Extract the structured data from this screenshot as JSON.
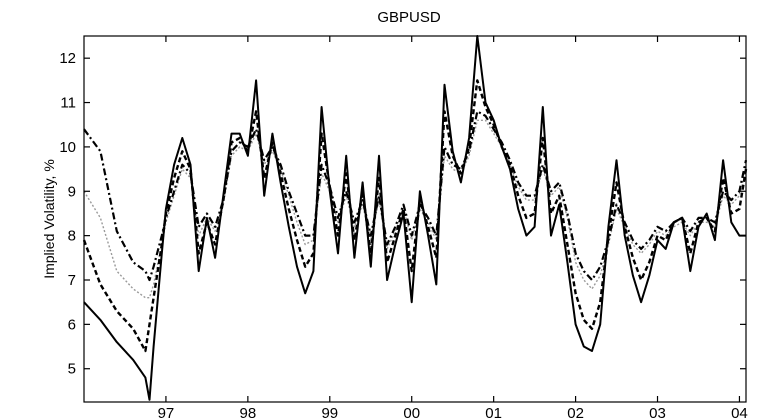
{
  "chart_data": {
    "type": "line",
    "title": "GBPUSD",
    "xlabel": "",
    "ylabel": "Implied Volatility, %",
    "xlim": [
      1996.0,
      2004.08
    ],
    "ylim": [
      4.25,
      12.5
    ],
    "grid": false,
    "legend": "none",
    "x_ticks": [
      {
        "value": 1997.0,
        "label": "97"
      },
      {
        "value": 1998.0,
        "label": "98"
      },
      {
        "value": 1999.0,
        "label": "99"
      },
      {
        "value": 2000.0,
        "label": "00"
      },
      {
        "value": 2001.0,
        "label": "01"
      },
      {
        "value": 2002.0,
        "label": "02"
      },
      {
        "value": 2003.0,
        "label": "03"
      },
      {
        "value": 2004.0,
        "label": "04"
      }
    ],
    "y_ticks": [
      5,
      6,
      7,
      8,
      9,
      10,
      11,
      12
    ],
    "series": [
      {
        "style": "solid",
        "x": [
          1996.0,
          1996.2,
          1996.4,
          1996.6,
          1996.75,
          1996.8,
          1996.85,
          1996.95,
          1997.0,
          1997.1,
          1997.2,
          1997.3,
          1997.4,
          1997.5,
          1997.6,
          1997.7,
          1997.8,
          1997.9,
          1998.0,
          1998.1,
          1998.2,
          1998.3,
          1998.4,
          1998.5,
          1998.6,
          1998.7,
          1998.8,
          1998.9,
          1999.0,
          1999.1,
          1999.2,
          1999.3,
          1999.4,
          1999.5,
          1999.6,
          1999.7,
          1999.8,
          1999.9,
          2000.0,
          2000.1,
          2000.2,
          2000.3,
          2000.4,
          2000.5,
          2000.6,
          2000.7,
          2000.8,
          2000.9,
          2001.0,
          2001.1,
          2001.2,
          2001.3,
          2001.4,
          2001.5,
          2001.6,
          2001.7,
          2001.8,
          2001.9,
          2002.0,
          2002.1,
          2002.2,
          2002.3,
          2002.4,
          2002.5,
          2002.6,
          2002.7,
          2002.8,
          2002.9,
          2003.0,
          2003.1,
          2003.2,
          2003.3,
          2003.4,
          2003.5,
          2003.6,
          2003.7,
          2003.8,
          2003.9,
          2004.0,
          2004.08
        ],
        "values": [
          6.5,
          6.1,
          5.6,
          5.2,
          4.8,
          4.3,
          5.5,
          7.6,
          8.6,
          9.6,
          10.2,
          9.6,
          7.2,
          8.4,
          7.5,
          8.9,
          10.3,
          10.3,
          9.8,
          11.5,
          8.9,
          10.3,
          9.2,
          8.2,
          7.3,
          6.7,
          7.2,
          10.9,
          9.0,
          7.6,
          9.8,
          7.5,
          9.2,
          7.3,
          9.8,
          7.0,
          7.8,
          8.5,
          6.5,
          9.0,
          8.0,
          6.9,
          11.4,
          9.9,
          9.2,
          10.2,
          12.5,
          11.0,
          10.6,
          10.0,
          9.5,
          8.6,
          8.0,
          8.2,
          10.9,
          8.0,
          8.7,
          7.4,
          6.0,
          5.5,
          5.4,
          6.0,
          8.2,
          9.7,
          8.0,
          7.1,
          6.5,
          7.1,
          7.9,
          7.7,
          8.3,
          8.4,
          7.2,
          8.2,
          8.5,
          7.9,
          9.7,
          8.3,
          8.0,
          8.0
        ]
      },
      {
        "style": "dashed",
        "x": [
          1996.0,
          1996.2,
          1996.4,
          1996.6,
          1996.75,
          1996.8,
          1996.85,
          1996.95,
          1997.0,
          1997.1,
          1997.2,
          1997.3,
          1997.4,
          1997.5,
          1997.6,
          1997.7,
          1997.8,
          1997.9,
          1998.0,
          1998.1,
          1998.2,
          1998.3,
          1998.4,
          1998.5,
          1998.6,
          1998.7,
          1998.8,
          1998.9,
          1999.0,
          1999.1,
          1999.2,
          1999.3,
          1999.4,
          1999.5,
          1999.6,
          1999.7,
          1999.8,
          1999.9,
          2000.0,
          2000.1,
          2000.2,
          2000.3,
          2000.4,
          2000.5,
          2000.6,
          2000.7,
          2000.8,
          2000.9,
          2001.0,
          2001.1,
          2001.2,
          2001.3,
          2001.4,
          2001.5,
          2001.6,
          2001.7,
          2001.8,
          2001.9,
          2002.0,
          2002.1,
          2002.2,
          2002.3,
          2002.4,
          2002.5,
          2002.6,
          2002.7,
          2002.8,
          2002.9,
          2003.0,
          2003.1,
          2003.2,
          2003.3,
          2003.4,
          2003.5,
          2003.6,
          2003.7,
          2003.8,
          2003.9,
          2004.0,
          2004.08
        ],
        "values": [
          7.9,
          6.9,
          6.3,
          5.9,
          5.4,
          6.0,
          6.6,
          7.8,
          8.5,
          9.3,
          9.9,
          9.5,
          7.6,
          8.3,
          7.8,
          8.8,
          10.1,
          10.2,
          9.9,
          10.8,
          9.3,
          10.1,
          9.4,
          8.6,
          7.9,
          7.3,
          7.6,
          10.3,
          9.1,
          8.0,
          9.4,
          7.9,
          9.0,
          7.6,
          9.3,
          7.4,
          8.0,
          8.6,
          7.2,
          8.8,
          8.2,
          7.5,
          10.8,
          9.8,
          9.4,
          10.0,
          11.5,
          10.9,
          10.5,
          10.0,
          9.6,
          8.9,
          8.4,
          8.5,
          10.2,
          8.5,
          8.9,
          7.8,
          6.7,
          6.1,
          5.9,
          6.5,
          8.0,
          9.2,
          8.2,
          7.5,
          7.0,
          7.4,
          8.0,
          7.9,
          8.3,
          8.4,
          7.6,
          8.3,
          8.4,
          8.1,
          9.3,
          8.5,
          8.6,
          9.5
        ]
      },
      {
        "style": "dashdot",
        "x": [
          1996.0,
          1996.2,
          1996.4,
          1996.6,
          1996.75,
          1996.8,
          1996.85,
          1996.95,
          1997.0,
          1997.1,
          1997.2,
          1997.3,
          1997.4,
          1997.5,
          1997.6,
          1997.7,
          1997.8,
          1997.9,
          1998.0,
          1998.1,
          1998.2,
          1998.3,
          1998.4,
          1998.5,
          1998.6,
          1998.7,
          1998.8,
          1998.9,
          1999.0,
          1999.1,
          1999.2,
          1999.3,
          1999.4,
          1999.5,
          1999.6,
          1999.7,
          1999.8,
          1999.9,
          2000.0,
          2000.1,
          2000.2,
          2000.3,
          2000.4,
          2000.5,
          2000.6,
          2000.7,
          2000.8,
          2000.9,
          2001.0,
          2001.1,
          2001.2,
          2001.3,
          2001.4,
          2001.5,
          2001.6,
          2001.7,
          2001.8,
          2001.9,
          2002.0,
          2002.1,
          2002.2,
          2002.3,
          2002.4,
          2002.5,
          2002.6,
          2002.7,
          2002.8,
          2002.9,
          2003.0,
          2003.1,
          2003.2,
          2003.3,
          2003.4,
          2003.5,
          2003.6,
          2003.7,
          2003.8,
          2003.9,
          2004.0,
          2004.08
        ],
        "values": [
          10.4,
          9.9,
          8.1,
          7.4,
          7.2,
          7.0,
          7.3,
          8.0,
          8.4,
          9.0,
          9.6,
          9.4,
          8.2,
          8.5,
          8.2,
          8.8,
          9.9,
          10.1,
          10.0,
          10.4,
          9.7,
          10.0,
          9.6,
          9.0,
          8.5,
          8.0,
          8.0,
          9.6,
          9.1,
          8.4,
          9.0,
          8.3,
          8.8,
          8.0,
          8.9,
          7.8,
          8.2,
          8.7,
          8.0,
          8.7,
          8.4,
          8.0,
          10.0,
          9.6,
          9.5,
          9.9,
          10.8,
          10.7,
          10.4,
          10.1,
          9.7,
          9.2,
          8.9,
          8.9,
          9.6,
          9.0,
          9.2,
          8.5,
          7.6,
          7.2,
          7.0,
          7.3,
          7.9,
          8.7,
          8.3,
          7.9,
          7.7,
          7.9,
          8.2,
          8.1,
          8.3,
          8.4,
          8.1,
          8.4,
          8.4,
          8.3,
          9.0,
          8.8,
          9.0,
          9.7
        ]
      },
      {
        "style": "dotted-gray",
        "x": [
          1996.0,
          1996.2,
          1996.4,
          1996.6,
          1996.75,
          1996.8,
          1996.85,
          1996.95,
          1997.0,
          1997.1,
          1997.2,
          1997.3,
          1997.4,
          1997.5,
          1997.6,
          1997.7,
          1997.8,
          1997.9,
          1998.0,
          1998.1,
          1998.2,
          1998.3,
          1998.4,
          1998.5,
          1998.6,
          1998.7,
          1998.8,
          1998.9,
          1999.0,
          1999.1,
          1999.2,
          1999.3,
          1999.4,
          1999.5,
          1999.6,
          1999.7,
          1999.8,
          1999.9,
          2000.0,
          2000.1,
          2000.2,
          2000.3,
          2000.4,
          2000.5,
          2000.6,
          2000.7,
          2000.8,
          2000.9,
          2001.0,
          2001.1,
          2001.2,
          2001.3,
          2001.4,
          2001.5,
          2001.6,
          2001.7,
          2001.8,
          2001.9,
          2002.0,
          2002.1,
          2002.2,
          2002.3,
          2002.4,
          2002.5,
          2002.6,
          2002.7,
          2002.8,
          2002.9,
          2003.0,
          2003.1,
          2003.2,
          2003.3,
          2003.4,
          2003.5,
          2003.6,
          2003.7,
          2003.8,
          2003.9,
          2004.0,
          2004.08
        ],
        "values": [
          9.0,
          8.4,
          7.2,
          6.8,
          6.6,
          6.6,
          6.9,
          7.8,
          8.3,
          8.9,
          9.5,
          9.3,
          8.0,
          8.4,
          8.1,
          8.7,
          9.8,
          10.0,
          9.9,
          10.3,
          9.6,
          9.9,
          9.5,
          8.9,
          8.3,
          7.8,
          7.9,
          9.4,
          9.0,
          8.3,
          8.9,
          8.2,
          8.7,
          7.9,
          8.8,
          7.7,
          8.1,
          8.6,
          7.9,
          8.6,
          8.3,
          7.9,
          9.8,
          9.5,
          9.4,
          9.8,
          10.6,
          10.6,
          10.3,
          10.0,
          9.6,
          9.1,
          8.8,
          8.8,
          9.5,
          8.9,
          9.1,
          8.4,
          7.4,
          7.0,
          6.8,
          7.1,
          7.8,
          8.6,
          8.2,
          7.8,
          7.6,
          7.8,
          8.1,
          8.0,
          8.2,
          8.3,
          8.0,
          8.3,
          8.3,
          8.2,
          8.9,
          8.7,
          8.9,
          9.5
        ]
      }
    ]
  }
}
